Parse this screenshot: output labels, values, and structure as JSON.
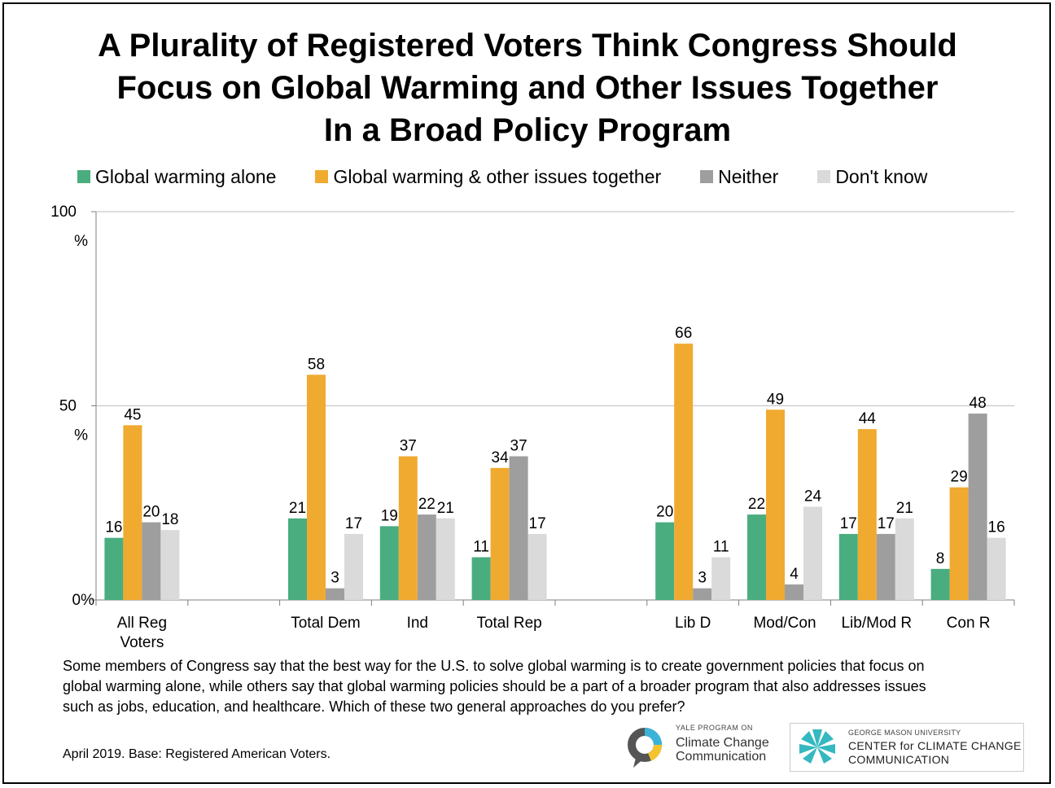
{
  "title_lines": [
    "A Plurality of Registered Voters Think Congress Should",
    "Focus on Global Warming and Other Issues Together",
    "In a Broad Policy Program"
  ],
  "legend": [
    {
      "label": "Global warming alone",
      "color": "#4aad7f"
    },
    {
      "label": "Global warming & other issues together",
      "color": "#f0aa30"
    },
    {
      "label": "Neither",
      "color": "#9e9e9e"
    },
    {
      "label": "Don't know",
      "color": "#dadada"
    }
  ],
  "chart_data": {
    "type": "bar",
    "categories": [
      "All Reg\nVoters",
      "",
      "Total Dem",
      "Ind",
      "Total Rep",
      "",
      "Lib D",
      "Mod/Con",
      "Lib/Mod R",
      "Con R"
    ],
    "series": [
      {
        "name": "Global warming alone",
        "color": "#4aad7f",
        "values": [
          16,
          null,
          21,
          19,
          11,
          null,
          20,
          22,
          17,
          8
        ]
      },
      {
        "name": "Global warming & other issues together",
        "color": "#f0aa30",
        "values": [
          45,
          null,
          58,
          37,
          34,
          null,
          66,
          49,
          44,
          29
        ]
      },
      {
        "name": "Neither",
        "color": "#9e9e9e",
        "values": [
          20,
          null,
          3,
          22,
          37,
          null,
          3,
          4,
          17,
          48
        ]
      },
      {
        "name": "Don't know",
        "color": "#dadada",
        "values": [
          18,
          null,
          17,
          21,
          17,
          null,
          11,
          24,
          21,
          16
        ]
      }
    ],
    "y_ticks": [
      {
        "value": 0,
        "label": "0%"
      },
      {
        "value": 50,
        "label": "50\n%"
      },
      {
        "value": 100,
        "label": "100\n%"
      }
    ],
    "ylim": [
      0,
      100
    ],
    "gridlines": true,
    "legend_position": "top"
  },
  "question": "Some members of Congress say that the best way for the U.S. to solve global warming is to create government policies that focus on global warming alone, while others say that global warming policies should be a part of a broader program that also addresses issues such as jobs, education, and healthcare. Which of these two general approaches do you prefer?",
  "source": "April 2019. Base: Registered American Voters.",
  "logos": {
    "yale_small": "YALE PROGRAM ON",
    "yale_name_1": "Climate Change",
    "yale_name_2": "Communication",
    "gmu_small": "GEORGE MASON UNIVERSITY",
    "gmu_name_1": "CENTER for CLIMATE CHANGE",
    "gmu_name_2": "COMMUNICATION"
  }
}
